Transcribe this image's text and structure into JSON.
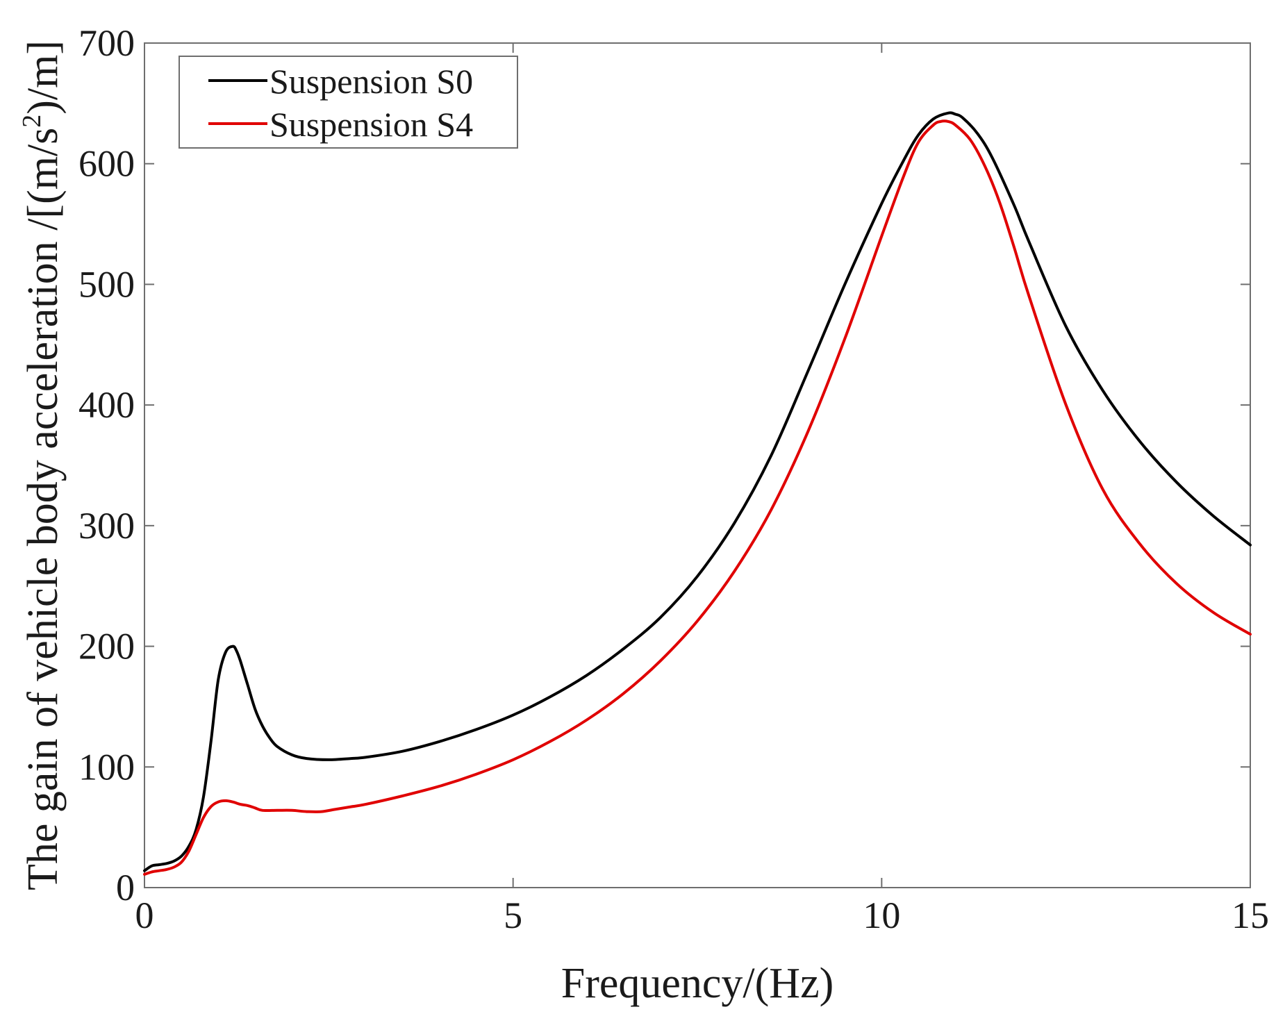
{
  "chart_data": {
    "type": "line",
    "title": "",
    "xlabel": "Frequency/(Hz)",
    "ylabel": {
      "prefix": "The gain of vehicle body acceleration /[(m/s",
      "superscript": "2",
      "suffix": ")/m]"
    },
    "xlim": [
      0,
      15
    ],
    "ylim": [
      0,
      700
    ],
    "xticks": [
      0,
      5,
      10,
      15
    ],
    "yticks": [
      0,
      100,
      200,
      300,
      400,
      500,
      600,
      700
    ],
    "grid": false,
    "legend_position": "top-left",
    "series": [
      {
        "name": "Suspension S0",
        "color": "#000000",
        "x": [
          0,
          0.1,
          0.2,
          0.3,
          0.4,
          0.5,
          0.6,
          0.7,
          0.8,
          0.9,
          1.0,
          1.1,
          1.2,
          1.25,
          1.3,
          1.4,
          1.5,
          1.6,
          1.7,
          1.8,
          2.0,
          2.2,
          2.5,
          2.8,
          3.0,
          3.5,
          4.0,
          4.5,
          5.0,
          5.5,
          6.0,
          6.5,
          7.0,
          7.5,
          8.0,
          8.5,
          9.0,
          9.5,
          10.0,
          10.3,
          10.5,
          10.7,
          10.9,
          11.0,
          11.1,
          11.3,
          11.5,
          11.8,
          12.0,
          12.5,
          13.0,
          13.5,
          14.0,
          14.5,
          15.0
        ],
        "y": [
          14,
          18,
          19,
          20,
          22,
          26,
          34,
          48,
          75,
          120,
          172,
          195,
          200,
          196,
          188,
          168,
          148,
          134,
          124,
          117,
          110,
          107,
          106,
          107,
          108,
          113,
          121,
          131,
          143,
          158,
          176,
          198,
          224,
          258,
          302,
          358,
          428,
          500,
          567,
          603,
          624,
          637,
          642,
          641,
          638,
          625,
          605,
          565,
          535,
          465,
          412,
          370,
          336,
          308,
          284
        ]
      },
      {
        "name": "Suspension S4",
        "color": "#e00000",
        "x": [
          0,
          0.1,
          0.2,
          0.3,
          0.4,
          0.5,
          0.6,
          0.7,
          0.8,
          0.9,
          1.0,
          1.1,
          1.2,
          1.3,
          1.4,
          1.5,
          1.6,
          1.8,
          2.0,
          2.2,
          2.4,
          2.6,
          2.8,
          3.0,
          3.5,
          4.0,
          4.5,
          5.0,
          5.5,
          6.0,
          6.5,
          7.0,
          7.5,
          8.0,
          8.5,
          9.0,
          9.5,
          10.0,
          10.3,
          10.5,
          10.7,
          10.8,
          10.9,
          11.0,
          11.2,
          11.4,
          11.6,
          11.8,
          12.0,
          12.5,
          13.0,
          13.5,
          14.0,
          14.5,
          15.0
        ],
        "y": [
          11,
          13,
          14,
          15,
          17,
          21,
          30,
          44,
          58,
          67,
          71,
          72,
          71,
          69,
          68,
          66,
          64,
          64,
          64,
          63,
          63,
          65,
          67,
          69,
          76,
          84,
          94,
          106,
          121,
          139,
          161,
          188,
          221,
          262,
          313,
          378,
          455,
          540,
          590,
          618,
          632,
          635,
          635,
          632,
          620,
          598,
          568,
          530,
          490,
          400,
          330,
          285,
          252,
          228,
          210
        ]
      }
    ]
  }
}
